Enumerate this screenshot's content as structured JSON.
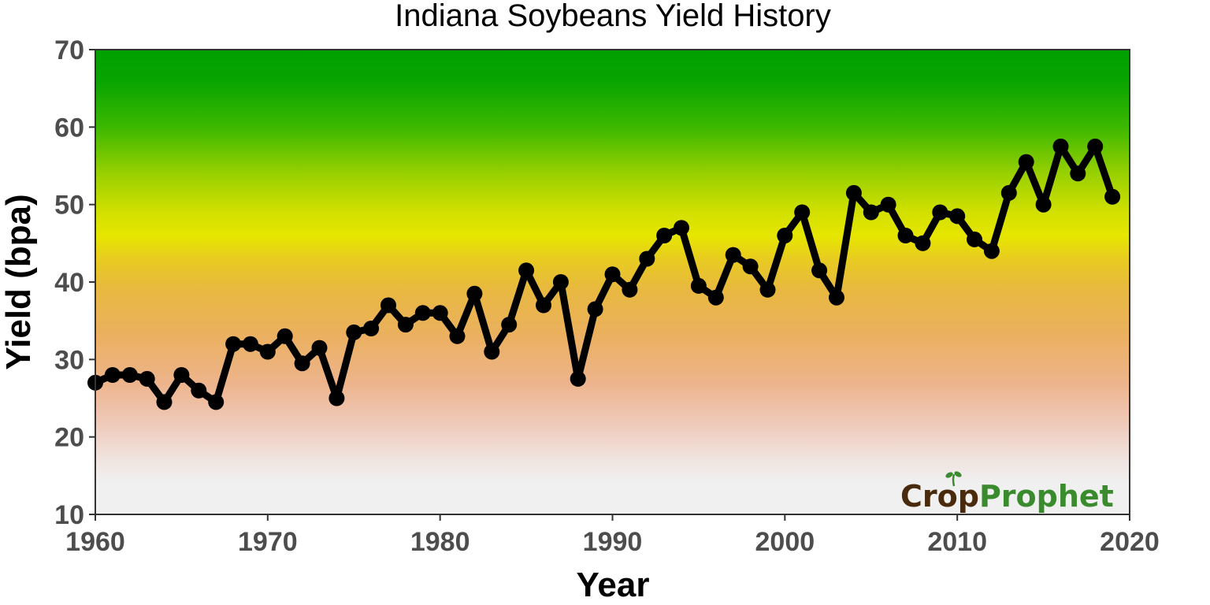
{
  "chart_data": {
    "type": "line",
    "title": "Indiana Soybeans Yield History",
    "xlabel": "Year",
    "ylabel": "Yield (bpa)",
    "xlim": [
      1960,
      2020
    ],
    "ylim": [
      10,
      70
    ],
    "x_ticks": [
      1960,
      1970,
      1980,
      1990,
      2000,
      2010,
      2020
    ],
    "y_ticks": [
      10,
      20,
      30,
      40,
      50,
      60,
      70
    ],
    "grid": false,
    "legend": null,
    "series": [
      {
        "name": "Yield",
        "color": "#000000",
        "markers": true,
        "x": [
          1960,
          1961,
          1962,
          1963,
          1964,
          1965,
          1966,
          1967,
          1968,
          1969,
          1970,
          1971,
          1972,
          1973,
          1974,
          1975,
          1976,
          1977,
          1978,
          1979,
          1980,
          1981,
          1982,
          1983,
          1984,
          1985,
          1986,
          1987,
          1988,
          1989,
          1990,
          1991,
          1992,
          1993,
          1994,
          1995,
          1996,
          1997,
          1998,
          1999,
          2000,
          2001,
          2002,
          2003,
          2004,
          2005,
          2006,
          2007,
          2008,
          2009,
          2010,
          2011,
          2012,
          2013,
          2014,
          2015,
          2016,
          2017,
          2018,
          2019
        ],
        "values": [
          27,
          28,
          28,
          27.5,
          24.5,
          28,
          26,
          24.5,
          32,
          32,
          31,
          33,
          29.5,
          31.5,
          25,
          33.5,
          34,
          37,
          34.5,
          36,
          36,
          33,
          38.5,
          31,
          34.5,
          41.5,
          37,
          40,
          27.5,
          36.5,
          41,
          39,
          43,
          46,
          47,
          39.5,
          38,
          43.5,
          42,
          39,
          46,
          49,
          41.5,
          38,
          51.5,
          49,
          50,
          46,
          45,
          49,
          48.5,
          45.5,
          44,
          51.5,
          55.5,
          50,
          57.5,
          54,
          57.5,
          51
        ]
      }
    ],
    "background_gradient": [
      {
        "value": 70,
        "color": "#00a000"
      },
      {
        "value": 66,
        "color": "#08a400"
      },
      {
        "value": 60,
        "color": "#3cb800"
      },
      {
        "value": 54,
        "color": "#98d000"
      },
      {
        "value": 49,
        "color": "#d2e000"
      },
      {
        "value": 46,
        "color": "#e6e600"
      },
      {
        "value": 43,
        "color": "#e8cc20"
      },
      {
        "value": 39,
        "color": "#e8b840"
      },
      {
        "value": 33,
        "color": "#ebb060"
      },
      {
        "value": 27,
        "color": "#edb48c"
      },
      {
        "value": 22,
        "color": "#efc8b8"
      },
      {
        "value": 17,
        "color": "#f0e4e0"
      },
      {
        "value": 14,
        "color": "#f0f0f0"
      },
      {
        "value": 10,
        "color": "#f0f0f0"
      }
    ],
    "annotations": [
      {
        "text": "CropProphet",
        "position": "bottom-right",
        "type": "logo"
      }
    ]
  },
  "logo": {
    "part1": "Crop",
    "part2": "Prophet"
  }
}
